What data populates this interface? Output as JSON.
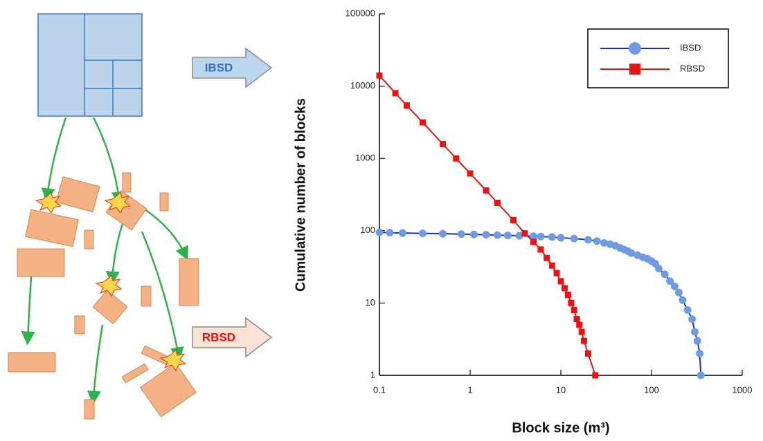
{
  "diagram": {
    "arrows": [
      {
        "label": "IBSD"
      },
      {
        "label": "RBSD"
      }
    ]
  },
  "chart_data": {
    "type": "line",
    "x_label": "Block size (m³)",
    "y_label": "Cumulative number of blocks",
    "xscale": "log",
    "yscale": "log",
    "xlim": [
      0.1,
      1000
    ],
    "ylim": [
      1,
      100000
    ],
    "xticks": [
      0.1,
      1,
      10,
      100,
      1000
    ],
    "yticks": [
      1,
      10,
      100,
      1000,
      10000,
      100000
    ],
    "legend": "upper right",
    "series": [
      {
        "name": "IBSD",
        "color": "#1a2fa8",
        "marker": "circle",
        "marker_color": "#6f9be3",
        "x": [
          0.1,
          0.13,
          0.18,
          0.3,
          0.5,
          0.8,
          1.1,
          1.5,
          2,
          2.6,
          3.5,
          5,
          6,
          8,
          10,
          14,
          20,
          25,
          30,
          35,
          40,
          45,
          50,
          55,
          60,
          70,
          80,
          90,
          100,
          110,
          120,
          140,
          160,
          180,
          200,
          220,
          250,
          280,
          300,
          320,
          340,
          350
        ],
        "values": [
          95,
          94,
          93,
          92,
          91,
          90,
          89,
          88,
          87,
          86,
          85,
          84,
          83,
          82,
          80,
          78,
          75,
          72,
          68,
          65,
          62,
          58,
          55,
          52,
          49,
          46,
          43,
          41,
          38,
          35,
          30,
          25,
          20,
          17,
          14,
          11,
          8,
          6,
          4,
          3,
          2,
          1
        ]
      },
      {
        "name": "RBSD",
        "color": "#ee1111",
        "marker": "square",
        "marker_color": "#ee1111",
        "x": [
          0.1,
          0.15,
          0.2,
          0.3,
          0.5,
          0.7,
          1,
          1.5,
          2,
          3,
          4,
          5,
          6,
          7,
          8,
          9,
          10,
          11,
          12,
          13,
          14,
          15,
          16,
          17,
          18,
          20,
          24
        ],
        "values": [
          14000,
          8000,
          5400,
          3150,
          1580,
          1000,
          620,
          360,
          243,
          140,
          92,
          70,
          55,
          42,
          33,
          26,
          20,
          16,
          13,
          10,
          8,
          6,
          5,
          4,
          3,
          2,
          1
        ]
      }
    ]
  }
}
